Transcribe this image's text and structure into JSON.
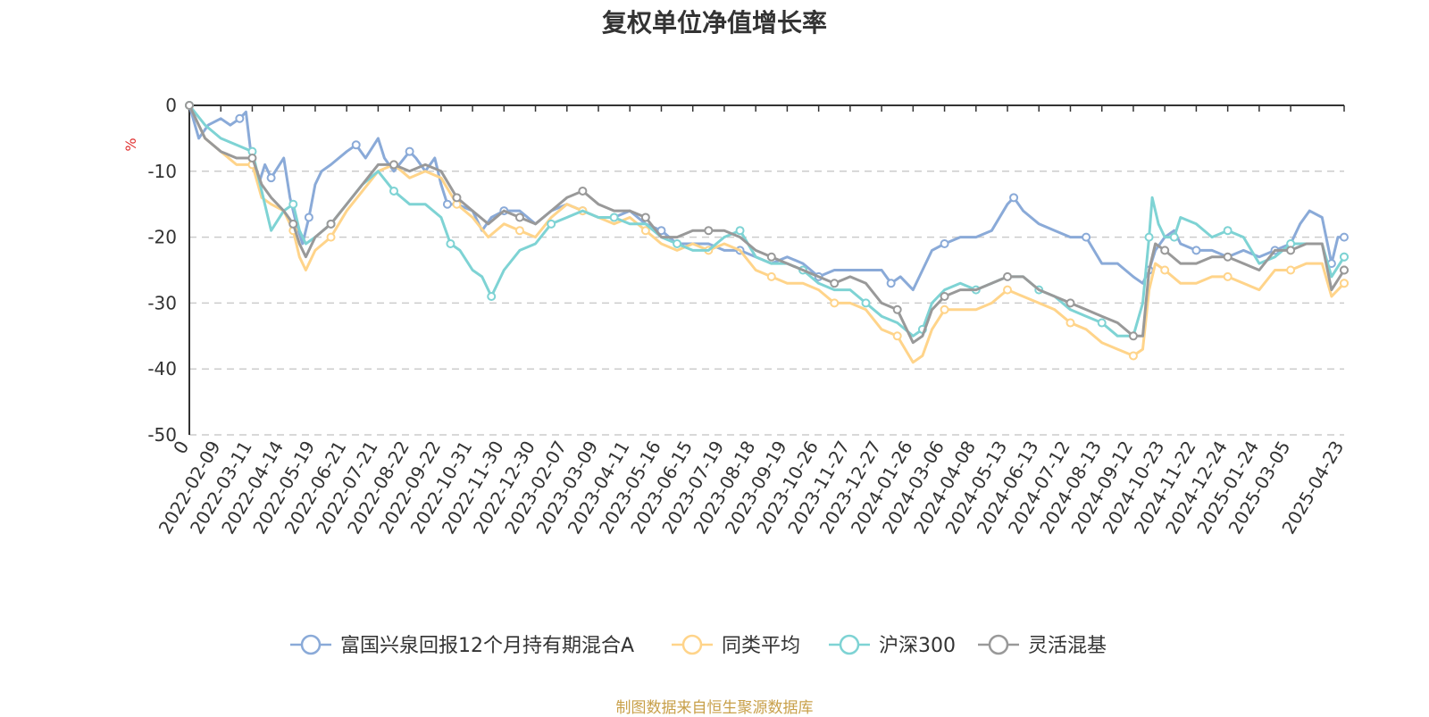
{
  "chart_data": {
    "type": "line",
    "title": "复权单位净值增长率",
    "ylabel": "%",
    "ylim": [
      -50,
      0
    ],
    "yticks": [
      "0",
      "-10",
      "-20",
      "-30",
      "-40",
      "-50"
    ],
    "grid": true,
    "legend_placement": "bottom-center",
    "x_tick_labels": [
      "0",
      "2022-02-09",
      "2022-03-11",
      "2022-04-14",
      "2022-05-19",
      "2022-06-21",
      "2022-07-21",
      "2022-08-22",
      "2022-09-22",
      "2022-10-31",
      "2022-11-30",
      "2022-12-30",
      "2023-02-07",
      "2023-03-09",
      "2023-04-11",
      "2023-05-16",
      "2023-06-15",
      "2023-07-19",
      "2023-08-18",
      "2023-09-19",
      "2023-10-26",
      "2023-11-27",
      "2023-12-27",
      "2024-01-26",
      "2024-03-06",
      "2024-04-08",
      "2024-05-13",
      "2024-06-13",
      "2024-07-12",
      "2024-08-13",
      "2024-09-12",
      "2024-10-23",
      "2024-11-22",
      "2024-12-24",
      "2025-01-24",
      "2025-03-05",
      "2025-04-23"
    ],
    "x_tick_positions": [
      0,
      1,
      2,
      3,
      4,
      5,
      6,
      7,
      8,
      9,
      10,
      11,
      12,
      13,
      14,
      15,
      16,
      17,
      18,
      19,
      20,
      21,
      22,
      23,
      24,
      25,
      26,
      27,
      28,
      29,
      30,
      31,
      32,
      33,
      34,
      35,
      36.7
    ],
    "x_max": 36.7,
    "series": [
      {
        "name": "富国兴泉回报12个月持有期混合A",
        "color": "#8aaad8",
        "x": [
          0,
          0.3,
          0.6,
          1,
          1.3,
          1.6,
          1.8,
          2,
          2.2,
          2.4,
          2.6,
          3,
          3.2,
          3.4,
          3.6,
          3.8,
          4,
          4.2,
          4.5,
          5,
          5.3,
          5.6,
          6,
          6.2,
          6.5,
          7,
          7.2,
          7.5,
          7.8,
          8,
          8.2,
          8.5,
          9,
          9.3,
          9.6,
          10,
          10.5,
          11,
          11.5,
          12,
          12.5,
          13,
          13.5,
          14,
          14.5,
          15,
          15.5,
          16,
          16.5,
          17,
          17.5,
          18,
          18.5,
          19,
          19.5,
          20,
          20.5,
          21,
          21.5,
          22,
          22.3,
          22.6,
          23,
          23.3,
          23.6,
          24,
          24.5,
          25,
          25.5,
          26,
          26.2,
          26.5,
          27,
          27.5,
          28,
          28.5,
          29,
          29.5,
          30,
          30.3,
          30.5,
          30.7,
          31,
          31.3,
          31.5,
          32,
          32.5,
          33,
          33.5,
          34,
          34.5,
          35,
          35.3,
          35.6,
          36,
          36.3,
          36.5,
          36.7
        ],
        "y": [
          0,
          -5,
          -3,
          -2,
          -3,
          -2,
          -1,
          -9,
          -12,
          -9,
          -11,
          -8,
          -14,
          -18,
          -21,
          -17,
          -12,
          -10,
          -9,
          -7,
          -6,
          -8,
          -5,
          -8,
          -10,
          -7,
          -8,
          -10,
          -8,
          -12,
          -15,
          -15,
          -16,
          -19,
          -17,
          -16,
          -16,
          -18,
          -16,
          -15,
          -16,
          -17,
          -17,
          -16,
          -18,
          -19,
          -21,
          -21,
          -21,
          -22,
          -22,
          -23,
          -24,
          -23,
          -24,
          -26,
          -25,
          -25,
          -25,
          -25,
          -27,
          -26,
          -28,
          -25,
          -22,
          -21,
          -20,
          -20,
          -19,
          -15,
          -14,
          -16,
          -18,
          -19,
          -20,
          -20,
          -24,
          -24,
          -26,
          -27,
          -25,
          -22,
          -20,
          -19,
          -21,
          -22,
          -22,
          -23,
          -22,
          -23,
          -22,
          -21,
          -18,
          -16,
          -17,
          -24,
          -20,
          -20
        ]
      },
      {
        "name": "同类平均",
        "color": "#ffd48a",
        "x": [
          0,
          0.5,
          1,
          1.5,
          2,
          2.3,
          2.6,
          3,
          3.3,
          3.5,
          3.7,
          4,
          4.5,
          5,
          5.5,
          6,
          6.5,
          7,
          7.5,
          8,
          8.5,
          9,
          9.5,
          10,
          10.5,
          11,
          11.5,
          12,
          12.5,
          13,
          13.5,
          14,
          14.5,
          15,
          15.5,
          16,
          16.5,
          17,
          17.5,
          18,
          18.5,
          19,
          19.5,
          20,
          20.5,
          21,
          21.5,
          22,
          22.5,
          23,
          23.3,
          23.6,
          24,
          24.5,
          25,
          25.5,
          26,
          26.5,
          27,
          27.5,
          28,
          28.5,
          29,
          29.5,
          30,
          30.3,
          30.5,
          30.7,
          31,
          31.5,
          32,
          32.5,
          33,
          33.5,
          34,
          34.5,
          35,
          35.5,
          36,
          36.3,
          36.7
        ],
        "y": [
          0,
          -5,
          -7,
          -9,
          -9,
          -14,
          -15,
          -16,
          -19,
          -23,
          -25,
          -22,
          -20,
          -16,
          -13,
          -10,
          -9,
          -11,
          -10,
          -11,
          -15,
          -17,
          -20,
          -18,
          -19,
          -20,
          -17,
          -15,
          -16,
          -17,
          -18,
          -17,
          -19,
          -21,
          -22,
          -21,
          -22,
          -21,
          -22,
          -25,
          -26,
          -27,
          -27,
          -28,
          -30,
          -30,
          -31,
          -34,
          -35,
          -39,
          -38,
          -34,
          -31,
          -31,
          -31,
          -30,
          -28,
          -29,
          -30,
          -31,
          -33,
          -34,
          -36,
          -37,
          -38,
          -37,
          -28,
          -24,
          -25,
          -27,
          -27,
          -26,
          -26,
          -27,
          -28,
          -25,
          -25,
          -24,
          -24,
          -29,
          -27
        ]
      },
      {
        "name": "沪深300",
        "color": "#7ed3d4",
        "x": [
          0,
          0.5,
          1,
          1.5,
          2,
          2.3,
          2.6,
          3,
          3.3,
          3.5,
          3.7,
          4,
          4.5,
          5,
          5.5,
          6,
          6.5,
          7,
          7.5,
          8,
          8.3,
          8.6,
          9,
          9.3,
          9.6,
          10,
          10.5,
          11,
          11.5,
          12,
          12.5,
          13,
          13.5,
          14,
          14.5,
          15,
          15.5,
          16,
          16.5,
          17,
          17.5,
          18,
          18.5,
          19,
          19.5,
          20,
          20.5,
          21,
          21.5,
          22,
          22.5,
          23,
          23.3,
          23.6,
          24,
          24.5,
          25,
          25.5,
          26,
          26.5,
          27,
          27.5,
          28,
          28.5,
          29,
          29.5,
          30,
          30.3,
          30.5,
          30.6,
          30.8,
          31,
          31.3,
          31.5,
          32,
          32.5,
          33,
          33.5,
          34,
          34.5,
          35,
          35.5,
          36,
          36.3,
          36.7
        ],
        "y": [
          0,
          -3,
          -5,
          -6,
          -7,
          -13,
          -19,
          -16,
          -15,
          -19,
          -21,
          -20,
          -18,
          -15,
          -12,
          -10,
          -13,
          -15,
          -15,
          -17,
          -21,
          -22,
          -25,
          -26,
          -29,
          -25,
          -22,
          -21,
          -18,
          -17,
          -16,
          -17,
          -17,
          -18,
          -18,
          -20,
          -21,
          -22,
          -22,
          -20,
          -19,
          -23,
          -24,
          -24,
          -25,
          -27,
          -28,
          -28,
          -30,
          -32,
          -33,
          -35,
          -34,
          -30,
          -28,
          -27,
          -28,
          -27,
          -26,
          -26,
          -28,
          -29,
          -31,
          -32,
          -33,
          -35,
          -35,
          -30,
          -20,
          -14,
          -18,
          -20,
          -20,
          -17,
          -18,
          -20,
          -19,
          -20,
          -24,
          -23,
          -21,
          -21,
          -21,
          -26,
          -23
        ]
      },
      {
        "name": "灵活混基",
        "color": "#999999",
        "x": [
          0,
          0.5,
          1,
          1.5,
          2,
          2.3,
          2.6,
          3,
          3.3,
          3.5,
          3.7,
          4,
          4.5,
          5,
          5.5,
          6,
          6.5,
          7,
          7.5,
          8,
          8.5,
          9,
          9.5,
          10,
          10.5,
          11,
          11.5,
          12,
          12.5,
          13,
          13.5,
          14,
          14.5,
          15,
          15.5,
          16,
          16.5,
          17,
          17.5,
          18,
          18.5,
          19,
          19.5,
          20,
          20.5,
          21,
          21.5,
          22,
          22.5,
          23,
          23.3,
          23.6,
          24,
          24.5,
          25,
          25.5,
          26,
          26.5,
          27,
          27.5,
          28,
          28.5,
          29,
          29.5,
          30,
          30.3,
          30.5,
          30.7,
          31,
          31.5,
          32,
          32.5,
          33,
          33.5,
          34,
          34.5,
          35,
          35.5,
          36,
          36.3,
          36.7
        ],
        "y": [
          0,
          -5,
          -7,
          -8,
          -8,
          -12,
          -14,
          -16,
          -18,
          -21,
          -23,
          -20,
          -18,
          -15,
          -12,
          -9,
          -9,
          -10,
          -9,
          -10,
          -14,
          -16,
          -18,
          -16,
          -17,
          -18,
          -16,
          -14,
          -13,
          -15,
          -16,
          -16,
          -17,
          -20,
          -20,
          -19,
          -19,
          -19,
          -20,
          -22,
          -23,
          -24,
          -25,
          -26,
          -27,
          -26,
          -27,
          -30,
          -31,
          -36,
          -35,
          -31,
          -29,
          -28,
          -28,
          -27,
          -26,
          -26,
          -28,
          -29,
          -30,
          -31,
          -32,
          -33,
          -35,
          -35,
          -25,
          -21,
          -22,
          -24,
          -24,
          -23,
          -23,
          -24,
          -25,
          -22,
          -22,
          -21,
          -21,
          -28,
          -25
        ]
      }
    ]
  },
  "footer": "制图数据来自恒生聚源数据库"
}
